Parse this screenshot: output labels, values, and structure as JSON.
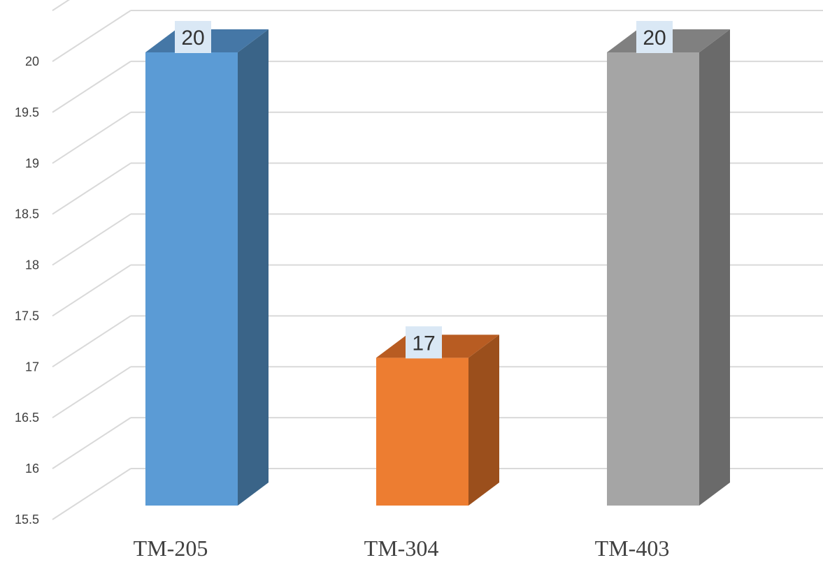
{
  "chart_data": {
    "type": "bar",
    "title": "",
    "xlabel": "",
    "ylabel": "",
    "categories": [
      "TM-205",
      "TM-304",
      "TM-403"
    ],
    "values": [
      20,
      17,
      20
    ],
    "data_labels": [
      "20",
      "17",
      "20"
    ],
    "ylim": [
      15.5,
      20.5
    ],
    "y_ticks": [
      "15.5",
      "16",
      "16.5",
      "17",
      "17.5",
      "18",
      "18.5",
      "19",
      "19.5",
      "20"
    ],
    "grid": true,
    "style": "3d-column",
    "colors": [
      {
        "front": "#5b9bd5",
        "side": "#3a6488",
        "top": "#4577a6"
      },
      {
        "front": "#ed7d31",
        "side": "#9b4f1c",
        "top": "#b85c22"
      },
      {
        "front": "#a5a5a5",
        "side": "#6a6a6a",
        "top": "#808080"
      }
    ],
    "grid_color": "#d9d9d9",
    "label_box_color": "#dae8f5"
  }
}
